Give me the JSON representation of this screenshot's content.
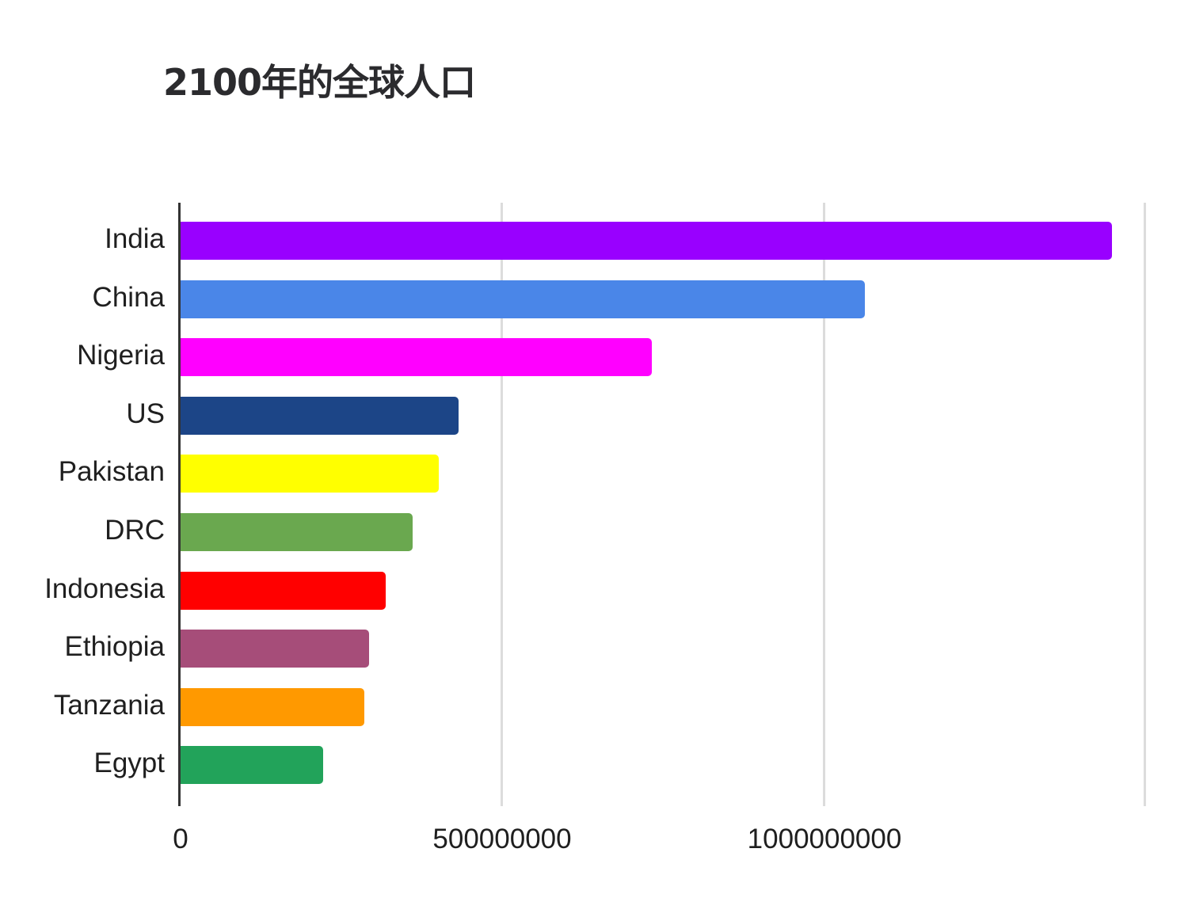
{
  "chart_data": {
    "type": "bar",
    "orientation": "horizontal",
    "title": "2100年的全球人口",
    "xlabel": "",
    "ylabel": "",
    "categories": [
      "India",
      "China",
      "Nigeria",
      "US",
      "Pakistan",
      "DRC",
      "Indonesia",
      "Ethiopia",
      "Tanzania",
      "Egypt"
    ],
    "values": [
      1448000000,
      1064000000,
      733000000,
      433000000,
      402000000,
      362000000,
      320000000,
      294000000,
      287000000,
      223000000
    ],
    "colors": [
      "#9900ff",
      "#4a86e8",
      "#ff00ff",
      "#1c4587",
      "#ffff00",
      "#6aa84f",
      "#ff0000",
      "#a64d79",
      "#ff9900",
      "#22a35a"
    ],
    "xlim": [
      0,
      1500000000
    ],
    "x_ticks": [
      0,
      500000000,
      1000000000,
      1500000000
    ],
    "x_tick_labels": [
      "0",
      "500000000",
      "1000000000",
      ""
    ],
    "grid": true,
    "legend": "none"
  },
  "axis": {
    "tick0": "0",
    "tick1": "500000000",
    "tick2": "1000000000"
  }
}
